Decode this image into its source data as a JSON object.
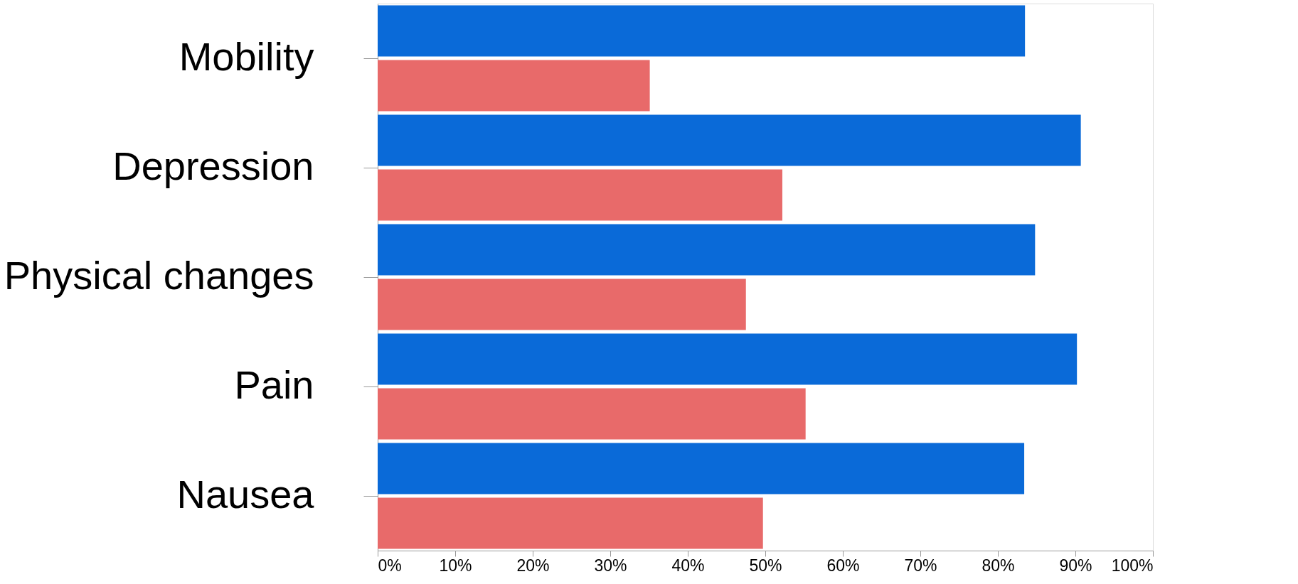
{
  "chart_data": {
    "type": "bar",
    "orientation": "horizontal",
    "categories": [
      "Mobility",
      "Depression",
      "Physical changes",
      "Pain",
      "Nausea"
    ],
    "series": [
      {
        "color": "#0a6ad8",
        "values": [
          83.5,
          90.7,
          84.8,
          90.2,
          83.4
        ]
      },
      {
        "color": "#e86a6a",
        "values": [
          35.1,
          52.2,
          47.5,
          55.2,
          49.7
        ]
      }
    ],
    "xlim": [
      0,
      100
    ],
    "xticks": [
      {
        "value": 0,
        "label": "0%"
      },
      {
        "value": 10,
        "label": "10%"
      },
      {
        "value": 20,
        "label": "20%"
      },
      {
        "value": 30,
        "label": "30%"
      },
      {
        "value": 40,
        "label": "40%"
      },
      {
        "value": 50,
        "label": "50%"
      },
      {
        "value": 60,
        "label": "60%"
      },
      {
        "value": 70,
        "label": "70%"
      },
      {
        "value": 80,
        "label": "80%"
      },
      {
        "value": 90,
        "label": "90%"
      },
      {
        "value": 100,
        "label": "100%"
      }
    ],
    "grid": false,
    "legend": false
  }
}
